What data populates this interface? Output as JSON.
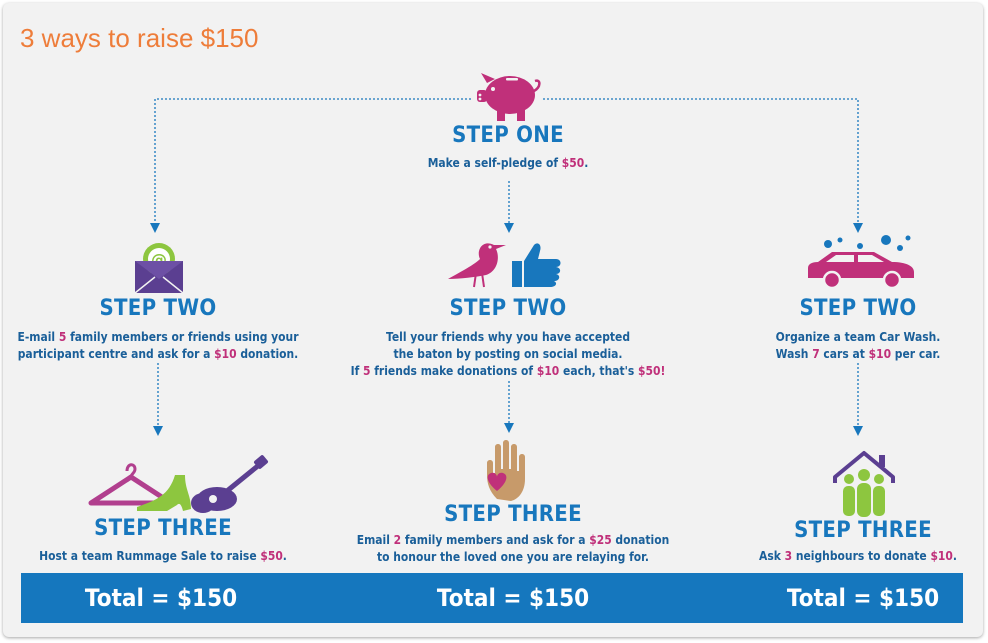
{
  "title": "3 ways to raise $150",
  "colors": {
    "orange": "#ee7d3a",
    "blue": "#1877bd",
    "magenta": "#c0307a",
    "green": "#8dc63f",
    "purple": "#5b3f91"
  },
  "step_one": {
    "heading": "STEP ONE",
    "text_before": "Make a self-pledge of ",
    "amount": "$50",
    "text_after": ".",
    "icon": "piggy-bank-icon"
  },
  "columns": [
    {
      "step_two": {
        "heading": "STEP TWO",
        "icon": "email-envelope-icon",
        "line1_a": "E-mail ",
        "line1_b": "5",
        "line1_c": " family members or friends using your",
        "line2_a": "participant centre and ask for a ",
        "line2_b": "$10",
        "line2_c": " donation."
      },
      "step_three": {
        "heading": "STEP THREE",
        "icon": "rummage-sale-icon",
        "line1_a": "Host a team Rummage Sale to raise ",
        "line1_b": "$50",
        "line1_c": "."
      },
      "total": "Total = $150"
    },
    {
      "step_two": {
        "heading": "STEP TWO",
        "icon": "social-media-icon",
        "line1": "Tell your friends why you have accepted",
        "line2": "the baton by posting on social media.",
        "line3_a": "If ",
        "line3_b": "5",
        "line3_c": " friends make donations of ",
        "line3_d": "$10",
        "line3_e": " each, that's ",
        "line3_f": "$50!"
      },
      "step_three": {
        "heading": "STEP THREE",
        "icon": "hand-heart-icon",
        "line1_a": "Email ",
        "line1_b": "2",
        "line1_c": " family members and ask for a ",
        "line1_d": "$25",
        "line1_e": " donation",
        "line2": "to honour the loved one you are relaying for."
      },
      "total": "Total = $150"
    },
    {
      "step_two": {
        "heading": "STEP TWO",
        "icon": "car-wash-icon",
        "line1": "Organize a team Car Wash.",
        "line2_a": "Wash ",
        "line2_b": "7",
        "line2_c": " cars at ",
        "line2_d": "$10",
        "line2_e": " per car."
      },
      "step_three": {
        "heading": "STEP THREE",
        "icon": "neighbours-house-icon",
        "line1_a": "Ask ",
        "line1_b": "3",
        "line1_c": " neighbours to donate ",
        "line1_d": "$10",
        "line1_e": "."
      },
      "total": "Total = $150"
    }
  ]
}
